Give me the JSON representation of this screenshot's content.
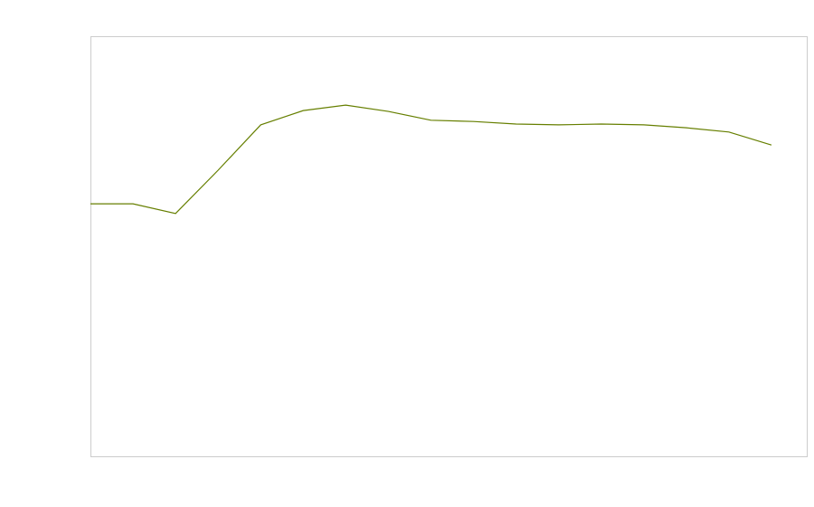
{
  "chart_data": {
    "type": "line",
    "x": [
      0,
      1,
      2,
      3,
      4,
      5,
      6,
      7,
      8,
      9,
      10,
      11,
      12,
      13,
      14,
      15,
      16
    ],
    "series": [
      {
        "color": "#667f00",
        "values": [
          60.1,
          60.1,
          57.8,
          68.1,
          78.9,
          82.3,
          83.6,
          82.1,
          80.0,
          79.7,
          79.1,
          78.9,
          79.1,
          78.9,
          78.2,
          77.2,
          74.1
        ]
      }
    ],
    "xlim": [
      0,
      16.83
    ],
    "ylim": [
      0,
      100
    ]
  }
}
